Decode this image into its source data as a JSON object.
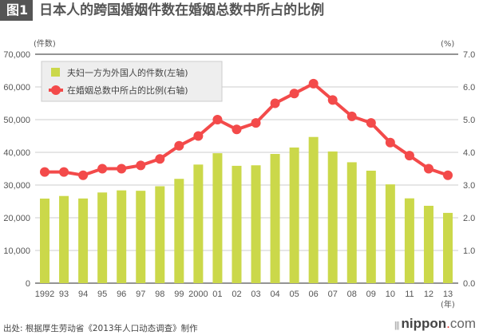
{
  "header": {
    "figure_label": "图1",
    "title": "日本人的跨国婚姻件数在婚姻总数中所占的比例"
  },
  "colors": {
    "bar": "#cbd84a",
    "line": "#f34a4a",
    "grid": "#cccccc",
    "axis": "#555555",
    "badge": "#555555"
  },
  "chart_data": {
    "type": "bar+line",
    "title": "日本人的跨国婚姻件数在婚姻总数中所占的比例",
    "left_axis": {
      "unit_label": "(件数)",
      "ylim": [
        0,
        70000
      ],
      "ticks": [
        "0",
        "10,000",
        "20,000",
        "30,000",
        "40,000",
        "50,000",
        "60,000",
        "70,000"
      ],
      "tick_values": [
        0,
        10000,
        20000,
        30000,
        40000,
        50000,
        60000,
        70000
      ]
    },
    "right_axis": {
      "unit_label": "(%)",
      "ylim": [
        0,
        7.0
      ],
      "ticks": [
        "0.0",
        "1.0",
        "2.0",
        "3.0",
        "4.0",
        "5.0",
        "6.0",
        "7.0"
      ],
      "tick_values": [
        0,
        1,
        2,
        3,
        4,
        5,
        6,
        7
      ]
    },
    "x_unit_label": "(年)",
    "categories": [
      "1992",
      "93",
      "94",
      "95",
      "96",
      "97",
      "98",
      "99",
      "2000",
      "01",
      "02",
      "03",
      "04",
      "05",
      "06",
      "07",
      "08",
      "09",
      "10",
      "11",
      "12",
      "13"
    ],
    "grid": true,
    "legend_position": "top-left",
    "series": [
      {
        "name": "夫妇一方为外国人的件数(左轴)",
        "type": "bar",
        "axis": "left",
        "values": [
          25862,
          26657,
          25891,
          27727,
          28372,
          28251,
          29636,
          31900,
          36263,
          39727,
          35879,
          36039,
          39511,
          41481,
          44701,
          40272,
          36969,
          34393,
          30207,
          25934,
          23657,
          21488
        ]
      },
      {
        "name": "在婚姻总数中所占的比例(右轴)",
        "type": "line",
        "axis": "right",
        "values": [
          3.4,
          3.4,
          3.3,
          3.5,
          3.5,
          3.6,
          3.8,
          4.2,
          4.5,
          5.0,
          4.7,
          4.9,
          5.5,
          5.8,
          6.1,
          5.6,
          5.1,
          4.9,
          4.3,
          3.9,
          3.5,
          3.3
        ]
      }
    ]
  },
  "footer": {
    "source": "出处: 根据厚生劳动省《2013年人口动态调查》制作",
    "brand_main": "nippon",
    "brand_dot": ".",
    "brand_suffix": "com",
    "brand_mark": "|||"
  }
}
